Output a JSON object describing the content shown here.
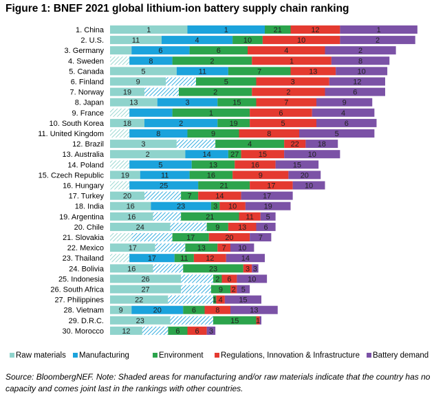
{
  "title": "Figure 1: BNEF 2021 global lithium-ion battery supply chain ranking",
  "note": "Source: BloombergNEF. Note: Shaded areas for manufacturing and/or raw materials indicate that the country has no capacity and comes joint last in the rankings with other countries.",
  "colors": {
    "raw_materials": "#8fd3cc",
    "manufacturing": "#1ba3dc",
    "environment": "#2ca44c",
    "regulations": "#e43a30",
    "battery_demand": "#7b52a6",
    "hatch_line": "#1ba3dc"
  },
  "chart_data": {
    "type": "bar",
    "orientation": "horizontal",
    "stacked": true,
    "legend_position": "bottom",
    "grid": false,
    "legend": [
      "Raw materials",
      "Manufacturing",
      "Environment",
      "Regulations, Innovation & Infrastructure",
      "Battery demand"
    ],
    "rows": [
      {
        "label": "1. China",
        "ranks": [
          1,
          1,
          21,
          12,
          1
        ],
        "widths": [
          18,
          18,
          6,
          11.5,
          18
        ],
        "shaded": [
          false,
          false
        ]
      },
      {
        "label": "2. U.S.",
        "ranks": [
          11,
          4,
          10,
          10,
          2
        ],
        "widths": [
          12,
          16.5,
          7,
          18,
          17.5
        ],
        "shaded": [
          false,
          false
        ]
      },
      {
        "label": "3. Germany",
        "ranks": [
          "",
          6,
          6,
          4,
          2
        ],
        "widths": [
          5,
          13.5,
          13.5,
          18,
          16.5
        ],
        "shaded": [
          false,
          false
        ]
      },
      {
        "label": "4. Sweden",
        "ranks": [
          "",
          8,
          2,
          1,
          8
        ],
        "widths": [
          4.5,
          10,
          18.5,
          18.5,
          13.5
        ],
        "shaded": [
          true,
          false
        ]
      },
      {
        "label": "5. Canada",
        "ranks": [
          5,
          11,
          7,
          13,
          10
        ],
        "widths": [
          15.5,
          12,
          14.5,
          10.5,
          12
        ],
        "shaded": [
          false,
          false
        ]
      },
      {
        "label": "6. Finland",
        "ranks": [
          9,
          "",
          5,
          3,
          12
        ],
        "widths": [
          13,
          7,
          14,
          17,
          13
        ],
        "shaded": [
          false,
          true
        ]
      },
      {
        "label": "7. Norway",
        "ranks": [
          19,
          "",
          2,
          2,
          6
        ],
        "widths": [
          8,
          8,
          17,
          17,
          14
        ],
        "shaded": [
          false,
          true
        ]
      },
      {
        "label": "8. Japan",
        "ranks": [
          13,
          3,
          15,
          7,
          9
        ],
        "widths": [
          11,
          14,
          9,
          14,
          13
        ],
        "shaded": [
          false,
          false
        ]
      },
      {
        "label": "9. France",
        "ranks": [
          "",
          "",
          1,
          6,
          4
        ],
        "widths": [
          4.5,
          10,
          18,
          14.5,
          14.5
        ],
        "shaded": [
          true,
          false
        ]
      },
      {
        "label": "10. South Korea",
        "ranks": [
          18,
          2,
          19,
          5,
          6
        ],
        "widths": [
          8,
          17,
          7.5,
          15.5,
          14
        ],
        "shaded": [
          false,
          false
        ]
      },
      {
        "label": "11. United Kingdom",
        "ranks": [
          "",
          8,
          9,
          8,
          5
        ],
        "widths": [
          4.5,
          13.5,
          12,
          14,
          17.5
        ],
        "shaded": [
          true,
          false
        ]
      },
      {
        "label": "12. Brazil",
        "ranks": [
          3,
          "",
          4,
          22,
          18
        ],
        "widths": [
          15.5,
          9,
          16,
          5,
          7.5
        ],
        "shaded": [
          false,
          true
        ]
      },
      {
        "label": "13. Australia",
        "ranks": [
          2,
          14,
          27,
          15,
          10
        ],
        "widths": [
          17.5,
          10,
          3,
          10,
          13
        ],
        "shaded": [
          false,
          false
        ]
      },
      {
        "label": "14. Poland",
        "ranks": [
          "",
          5,
          13,
          16,
          15
        ],
        "widths": [
          4.5,
          14.5,
          10,
          9.5,
          10
        ],
        "shaded": [
          true,
          false
        ]
      },
      {
        "label": "15. Czech Republic",
        "ranks": [
          19,
          11,
          16,
          9,
          20
        ],
        "widths": [
          7,
          11.5,
          10,
          13,
          7.5
        ],
        "shaded": [
          false,
          false
        ]
      },
      {
        "label": "16. Hungary",
        "ranks": [
          "",
          25,
          21,
          17,
          10
        ],
        "widths": [
          4.5,
          16,
          12,
          10,
          7.5
        ],
        "shaded": [
          true,
          false
        ]
      },
      {
        "label": "17. Turkey",
        "ranks": [
          20,
          "",
          7,
          14,
          17
        ],
        "widths": [
          8,
          8.5,
          4,
          10,
          12
        ],
        "shaded": [
          false,
          true
        ]
      },
      {
        "label": "18. India",
        "ranks": [
          16,
          23,
          3,
          10,
          19
        ],
        "widths": [
          9.5,
          14,
          2,
          6,
          10.5
        ],
        "shaded": [
          false,
          false
        ]
      },
      {
        "label": "19. Argentina",
        "ranks": [
          16,
          "",
          21,
          11,
          5
        ],
        "widths": [
          10,
          6.5,
          13.5,
          5,
          3.5
        ],
        "shaded": [
          false,
          true
        ]
      },
      {
        "label": "20. Chile",
        "ranks": [
          24,
          "",
          9,
          13,
          6
        ],
        "widths": [
          14,
          8.5,
          5,
          6.5,
          4.5
        ],
        "shaded": [
          false,
          true
        ]
      },
      {
        "label": "21. Slovakia",
        "ranks": [
          "",
          "",
          17,
          20,
          7
        ],
        "widths": [
          5,
          9.5,
          8.5,
          9.5,
          5
        ],
        "shaded": [
          true,
          true
        ]
      },
      {
        "label": "22. Mexico",
        "ranks": [
          17,
          "",
          13,
          7,
          10
        ],
        "widths": [
          10.5,
          7,
          7.5,
          3,
          5.5
        ],
        "shaded": [
          false,
          true
        ]
      },
      {
        "label": "23. Thailand",
        "ranks": [
          "",
          17,
          11,
          12,
          14
        ],
        "widths": [
          4.5,
          10.5,
          4.5,
          7.5,
          9
        ],
        "shaded": [
          true,
          false
        ]
      },
      {
        "label": "24. Bolivia",
        "ranks": [
          16,
          "",
          23,
          3,
          3
        ],
        "widths": [
          10,
          7,
          14,
          2,
          1.5
        ],
        "shaded": [
          false,
          true
        ]
      },
      {
        "label": "25. Indonesia",
        "ranks": [
          26,
          "",
          2,
          6,
          10
        ],
        "widths": [
          16.5,
          7.5,
          2,
          3.5,
          7
        ],
        "shaded": [
          false,
          true
        ]
      },
      {
        "label": "26. South Africa",
        "ranks": [
          27,
          "",
          9,
          2,
          5
        ],
        "widths": [
          16.5,
          7,
          4.5,
          1.5,
          3
        ],
        "shaded": [
          false,
          true
        ]
      },
      {
        "label": "27. Philippines",
        "ranks": [
          22,
          "",
          1,
          4,
          15
        ],
        "widths": [
          13.5,
          10.5,
          0.7,
          2,
          8.5
        ],
        "shaded": [
          false,
          true
        ]
      },
      {
        "label": "28. Vietnam",
        "ranks": [
          9,
          20,
          6,
          8,
          13
        ],
        "widths": [
          5,
          12,
          5,
          6,
          11
        ],
        "shaded": [
          false,
          false
        ]
      },
      {
        "label": "29. D.R.C.",
        "ranks": [
          23,
          "",
          15,
          1,
          ""
        ],
        "widths": [
          14,
          10,
          10,
          0.8,
          0.4
        ],
        "shaded": [
          false,
          true
        ]
      },
      {
        "label": "30. Morocco",
        "ranks": [
          12,
          "",
          6,
          6,
          3
        ],
        "widths": [
          7.5,
          6,
          4.5,
          4.5,
          2
        ],
        "shaded": [
          false,
          true
        ]
      }
    ]
  }
}
